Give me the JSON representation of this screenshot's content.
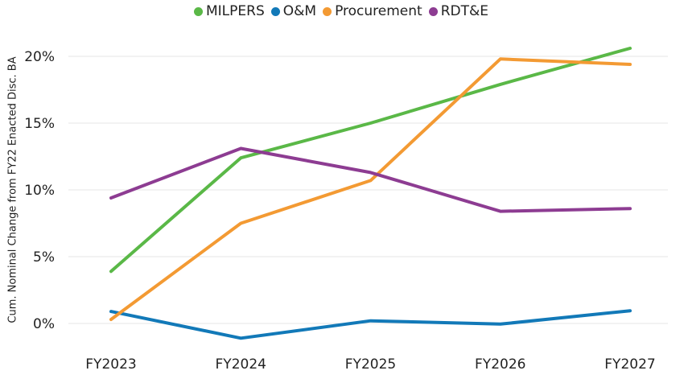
{
  "chart_data": {
    "type": "line",
    "title": "",
    "xlabel": "",
    "ylabel": "Cum. Nominal Change from FY22 Enacted Disc. BA",
    "categories": [
      "FY2023",
      "FY2024",
      "FY2025",
      "FY2026",
      "FY2027"
    ],
    "ylim": [
      -1.5,
      21
    ],
    "yticks": [
      0,
      5,
      10,
      15,
      20
    ],
    "ytick_labels": [
      "0%",
      "5%",
      "10%",
      "15%",
      "20%"
    ],
    "grid": "horizontal",
    "legend_position": "top",
    "series": [
      {
        "name": "MILPERS",
        "color": "#5ab847",
        "values": [
          3.9,
          12.4,
          15.0,
          17.9,
          20.6
        ]
      },
      {
        "name": "O&M",
        "color": "#1279b8",
        "values": [
          0.9,
          -1.1,
          0.2,
          -0.05,
          0.95
        ]
      },
      {
        "name": "Procurement",
        "color": "#f39a33",
        "values": [
          0.3,
          7.5,
          10.7,
          19.8,
          19.4
        ]
      },
      {
        "name": "RDT&E",
        "color": "#8d3c92",
        "values": [
          9.4,
          13.1,
          11.3,
          8.4,
          8.6
        ]
      }
    ]
  }
}
